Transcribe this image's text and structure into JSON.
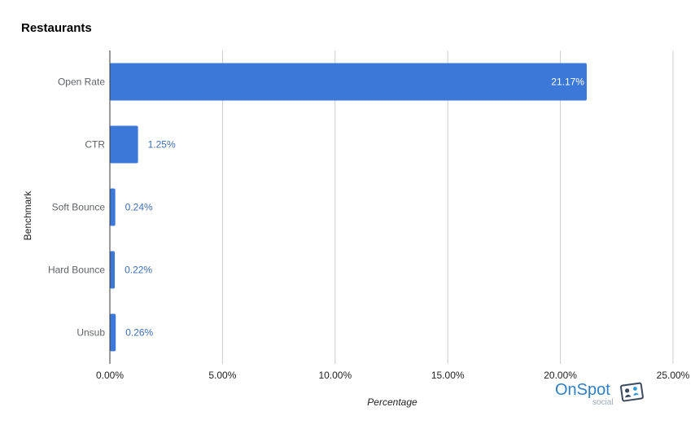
{
  "chart_data": {
    "type": "bar",
    "orientation": "horizontal",
    "title": "Restaurants",
    "xlabel": "Percentage",
    "ylabel": "Benchmark",
    "categories": [
      "Open Rate",
      "CTR",
      "Soft Bounce",
      "Hard Bounce",
      "Unsub"
    ],
    "values": [
      21.17,
      1.25,
      0.24,
      0.22,
      0.26
    ],
    "data_labels": [
      "21.17%",
      "1.25%",
      "0.24%",
      "0.22%",
      "0.26%"
    ],
    "xlim": [
      0,
      25
    ],
    "xticks": [
      0,
      5,
      10,
      15,
      20,
      25
    ],
    "xtick_labels": [
      "0.00%",
      "5.00%",
      "10.00%",
      "15.00%",
      "20.00%",
      "25.00%"
    ],
    "grid": "vertical",
    "legend": "none",
    "colors": {
      "bar": "#3c78d8",
      "label_outside": "#3c6fb5",
      "label_inside": "#ffffff",
      "grid": "#cccccc",
      "axis_text": "#5f6368"
    }
  },
  "brand": {
    "name": "OnSpot",
    "sub": "social",
    "icon": "id-card-icon"
  }
}
